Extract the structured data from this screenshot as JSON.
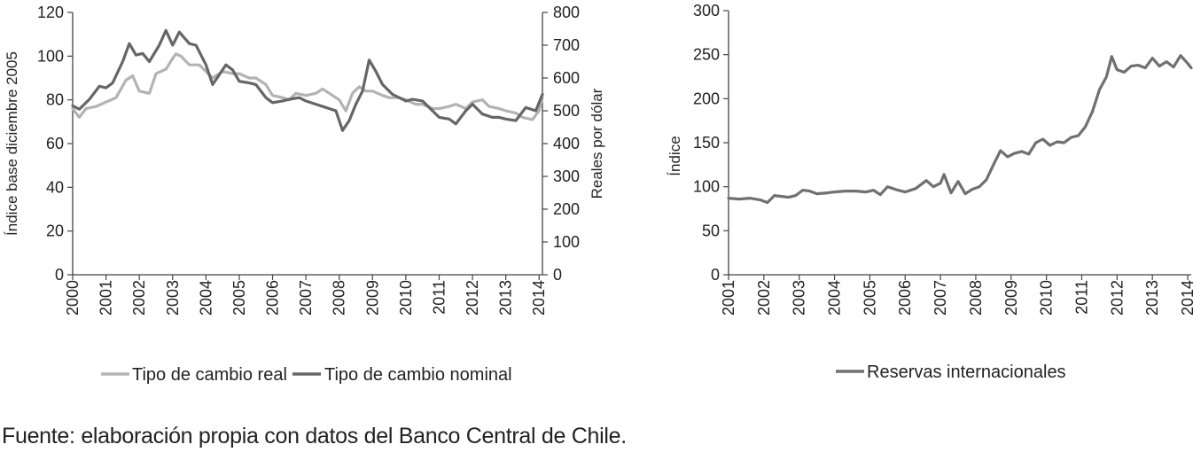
{
  "source_note": "Fuente: elaboración propia con datos del Banco Central de Chile.",
  "chart_data": [
    {
      "type": "line",
      "x_ticks": [
        "2000",
        "2001",
        "2002",
        "2003",
        "2004",
        "2005",
        "2006",
        "2007",
        "2008",
        "2009",
        "2010",
        "2011",
        "2012",
        "2013",
        "2014"
      ],
      "xlim": [
        2000,
        2014.1
      ],
      "ylabel": "Índice base diciembre 2005",
      "ylim": [
        0,
        120
      ],
      "y_ticks": [
        "0",
        "20",
        "40",
        "60",
        "80",
        "100",
        "120"
      ],
      "y2label": "Reales por dólar",
      "y2lim": [
        0,
        800
      ],
      "y2_ticks": [
        "0",
        "100",
        "200",
        "300",
        "400",
        "500",
        "600",
        "700",
        "800"
      ],
      "legend_position": "bottom",
      "grid": false,
      "series": [
        {
          "name": "Tipo de cambio real",
          "color": "#b3b3b3",
          "axis": "left",
          "x": [
            2000.0,
            2000.2,
            2000.4,
            2000.7,
            2001.0,
            2001.3,
            2001.6,
            2001.8,
            2002.0,
            2002.3,
            2002.5,
            2002.8,
            2003.0,
            2003.1,
            2003.25,
            2003.5,
            2003.8,
            2004.0,
            2004.2,
            2004.5,
            2004.8,
            2005.0,
            2005.3,
            2005.5,
            2005.8,
            2006.0,
            2006.3,
            2006.5,
            2006.7,
            2007.0,
            2007.3,
            2007.5,
            2007.8,
            2008.0,
            2008.2,
            2008.4,
            2008.6,
            2008.8,
            2009.0,
            2009.3,
            2009.5,
            2009.8,
            2010.0,
            2010.3,
            2010.5,
            2010.8,
            2011.0,
            2011.3,
            2011.5,
            2011.8,
            2012.0,
            2012.3,
            2012.5,
            2012.8,
            2013.0,
            2013.3,
            2013.5,
            2013.8,
            2014.0,
            2014.1
          ],
          "y": [
            76,
            72,
            76,
            77,
            79,
            81,
            89,
            91,
            84,
            83,
            92,
            94,
            99,
            101,
            100,
            96,
            96,
            93,
            90,
            93,
            92,
            92,
            90,
            90,
            87,
            82,
            81,
            80,
            83,
            82,
            83,
            85,
            82,
            80,
            75,
            83,
            86,
            84,
            84,
            82,
            81,
            81,
            80,
            78,
            78,
            76,
            76,
            77,
            78,
            76,
            79,
            80,
            77,
            76,
            75,
            74,
            72,
            71,
            75,
            81
          ]
        },
        {
          "name": "Tipo de cambio nominal",
          "color": "#666666",
          "axis": "right",
          "x": [
            2000.0,
            2000.2,
            2000.5,
            2000.8,
            2001.0,
            2001.2,
            2001.5,
            2001.7,
            2001.9,
            2002.1,
            2002.3,
            2002.6,
            2002.8,
            2003.0,
            2003.2,
            2003.5,
            2003.7,
            2004.0,
            2004.2,
            2004.4,
            2004.6,
            2004.8,
            2005.0,
            2005.3,
            2005.5,
            2005.8,
            2006.0,
            2006.3,
            2006.5,
            2006.8,
            2007.0,
            2007.3,
            2007.6,
            2007.9,
            2008.1,
            2008.3,
            2008.5,
            2008.7,
            2008.9,
            2009.1,
            2009.3,
            2009.6,
            2009.8,
            2010.0,
            2010.2,
            2010.5,
            2010.7,
            2011.0,
            2011.3,
            2011.5,
            2011.8,
            2012.0,
            2012.3,
            2012.6,
            2012.8,
            2013.0,
            2013.3,
            2013.6,
            2013.9,
            2014.1
          ],
          "y": [
            515,
            505,
            535,
            575,
            570,
            585,
            650,
            705,
            670,
            675,
            650,
            700,
            745,
            700,
            740,
            705,
            700,
            640,
            580,
            610,
            640,
            625,
            590,
            585,
            580,
            540,
            525,
            530,
            535,
            540,
            530,
            520,
            510,
            500,
            440,
            470,
            520,
            560,
            655,
            620,
            580,
            550,
            540,
            530,
            535,
            530,
            510,
            480,
            475,
            460,
            500,
            520,
            490,
            480,
            480,
            475,
            470,
            510,
            500,
            550
          ]
        }
      ]
    },
    {
      "type": "line",
      "x_ticks": [
        "2001",
        "2002",
        "2003",
        "2004",
        "2005",
        "2006",
        "2007",
        "2008",
        "2009",
        "2010",
        "2011",
        "2012",
        "2013",
        "2014"
      ],
      "xlim": [
        2001,
        2014.1
      ],
      "ylabel": "Índice",
      "ylim": [
        0,
        300
      ],
      "y_ticks": [
        "0",
        "50",
        "100",
        "150",
        "200",
        "250",
        "300"
      ],
      "legend_position": "bottom",
      "grid": false,
      "series": [
        {
          "name": "Reservas internacionales",
          "color": "#707070",
          "x": [
            2001.0,
            2001.3,
            2001.6,
            2001.9,
            2002.1,
            2002.3,
            2002.5,
            2002.7,
            2002.9,
            2003.1,
            2003.3,
            2003.5,
            2003.8,
            2004.0,
            2004.3,
            2004.6,
            2004.9,
            2005.1,
            2005.3,
            2005.5,
            2005.8,
            2006.0,
            2006.3,
            2006.6,
            2006.8,
            2007.0,
            2007.1,
            2007.3,
            2007.5,
            2007.7,
            2007.9,
            2008.1,
            2008.3,
            2008.5,
            2008.7,
            2008.9,
            2009.1,
            2009.3,
            2009.5,
            2009.7,
            2009.9,
            2010.1,
            2010.3,
            2010.5,
            2010.7,
            2010.9,
            2011.1,
            2011.3,
            2011.5,
            2011.7,
            2011.85,
            2012.0,
            2012.2,
            2012.4,
            2012.6,
            2012.8,
            2013.0,
            2013.2,
            2013.4,
            2013.6,
            2013.8,
            2014.0,
            2014.1
          ],
          "y": [
            87,
            86,
            87,
            85,
            82,
            90,
            89,
            88,
            90,
            96,
            95,
            92,
            93,
            94,
            95,
            95,
            94,
            96,
            91,
            100,
            96,
            94,
            98,
            107,
            100,
            104,
            114,
            93,
            106,
            92,
            97,
            100,
            108,
            125,
            141,
            134,
            138,
            140,
            137,
            150,
            154,
            147,
            151,
            150,
            156,
            158,
            168,
            185,
            210,
            225,
            248,
            233,
            230,
            237,
            238,
            235,
            246,
            237,
            242,
            236,
            249,
            240,
            235
          ]
        }
      ]
    }
  ]
}
